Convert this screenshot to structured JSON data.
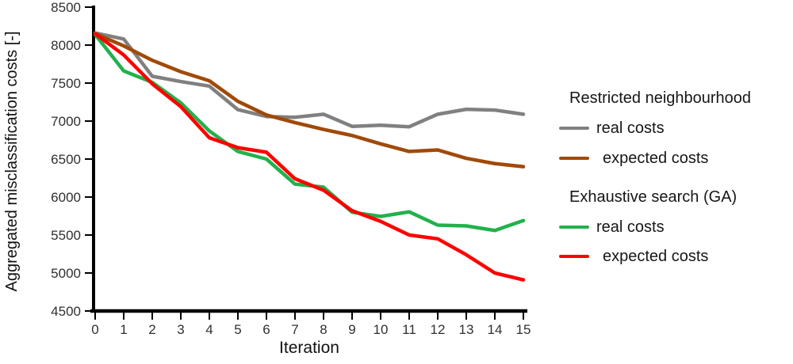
{
  "chart_data": {
    "type": "line",
    "title": "",
    "xlabel": "Iteration",
    "ylabel": "Aggregated misclassification costs [-]",
    "x": [
      0,
      1,
      2,
      3,
      4,
      5,
      6,
      7,
      8,
      9,
      10,
      11,
      12,
      13,
      14,
      15
    ],
    "xlim": [
      0,
      15
    ],
    "ylim": [
      4500,
      8500
    ],
    "y_ticks": [
      4500,
      5000,
      5500,
      6000,
      6500,
      7000,
      7500,
      8000,
      8500
    ],
    "grid": false,
    "legend_position": "right",
    "series": [
      {
        "name": "Restricted neighbourhood - real costs",
        "color": "#808080",
        "values": [
          8160,
          8080,
          7590,
          7520,
          7460,
          7150,
          7060,
          7050,
          7090,
          6930,
          6945,
          6925,
          7090,
          7155,
          7145,
          7090
        ]
      },
      {
        "name": "Restricted neighbourhood - expected costs",
        "color": "#A04A08",
        "values": [
          8150,
          7990,
          7800,
          7650,
          7530,
          7260,
          7080,
          6980,
          6890,
          6810,
          6700,
          6600,
          6620,
          6510,
          6440,
          6400
        ]
      },
      {
        "name": "Exhaustive search (GA) - real costs",
        "color": "#22B14C",
        "values": [
          8140,
          7660,
          7510,
          7240,
          6870,
          6600,
          6500,
          6170,
          6130,
          5800,
          5745,
          5805,
          5630,
          5620,
          5560,
          5690
        ]
      },
      {
        "name": "Exhaustive search (GA) - expected costs",
        "color": "#FF0000",
        "values": [
          8150,
          7870,
          7490,
          7190,
          6780,
          6650,
          6590,
          6240,
          6090,
          5820,
          5680,
          5500,
          5450,
          5240,
          5000,
          4910
        ]
      }
    ]
  },
  "axes": {
    "x_title": "Iteration",
    "y_title": "Aggregated misclassification costs [-]"
  },
  "legend": {
    "groups": [
      {
        "title": "Restricted neighbourhood",
        "items": [
          {
            "label": "real costs",
            "color": "#808080"
          },
          {
            "label": "expected costs",
            "color": "#A04A08"
          }
        ]
      },
      {
        "title": "Exhaustive search (GA)",
        "items": [
          {
            "label": "real costs",
            "color": "#22B14C"
          },
          {
            "label": "expected costs",
            "color": "#FF0000"
          }
        ]
      }
    ]
  }
}
